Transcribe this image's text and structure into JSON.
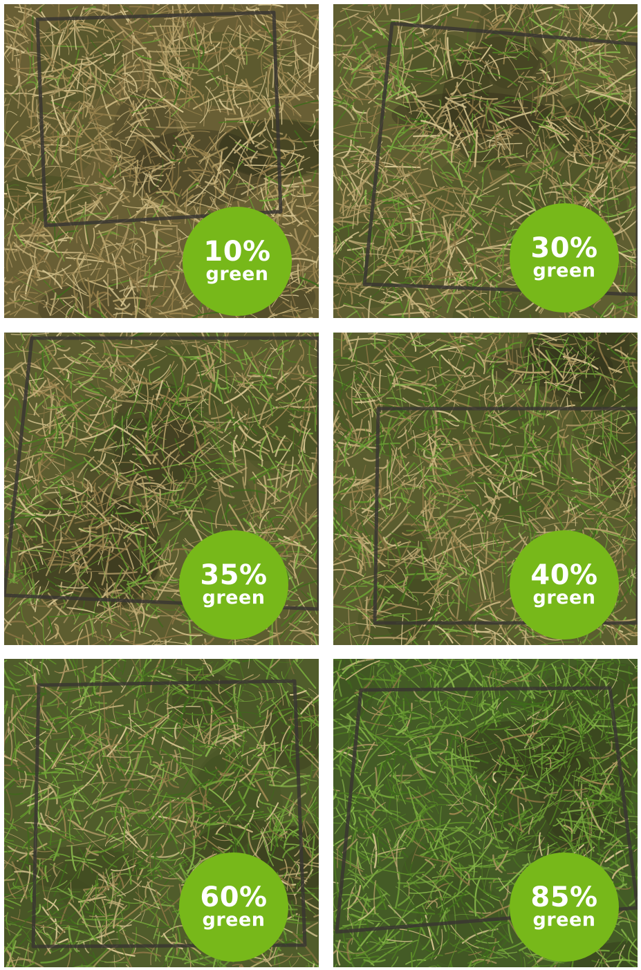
{
  "colors": {
    "badge": "#77b81a",
    "badge_text": "#ffffff",
    "gutter": "#ffffff"
  },
  "panels": [
    {
      "percent": "10%",
      "label": "green",
      "green_fraction": 0.1
    },
    {
      "percent": "30%",
      "label": "green",
      "green_fraction": 0.3
    },
    {
      "percent": "35%",
      "label": "green",
      "green_fraction": 0.35
    },
    {
      "percent": "40%",
      "label": "green",
      "green_fraction": 0.4
    },
    {
      "percent": "60%",
      "label": "green",
      "green_fraction": 0.6
    },
    {
      "percent": "85%",
      "label": "green",
      "green_fraction": 0.85
    }
  ]
}
